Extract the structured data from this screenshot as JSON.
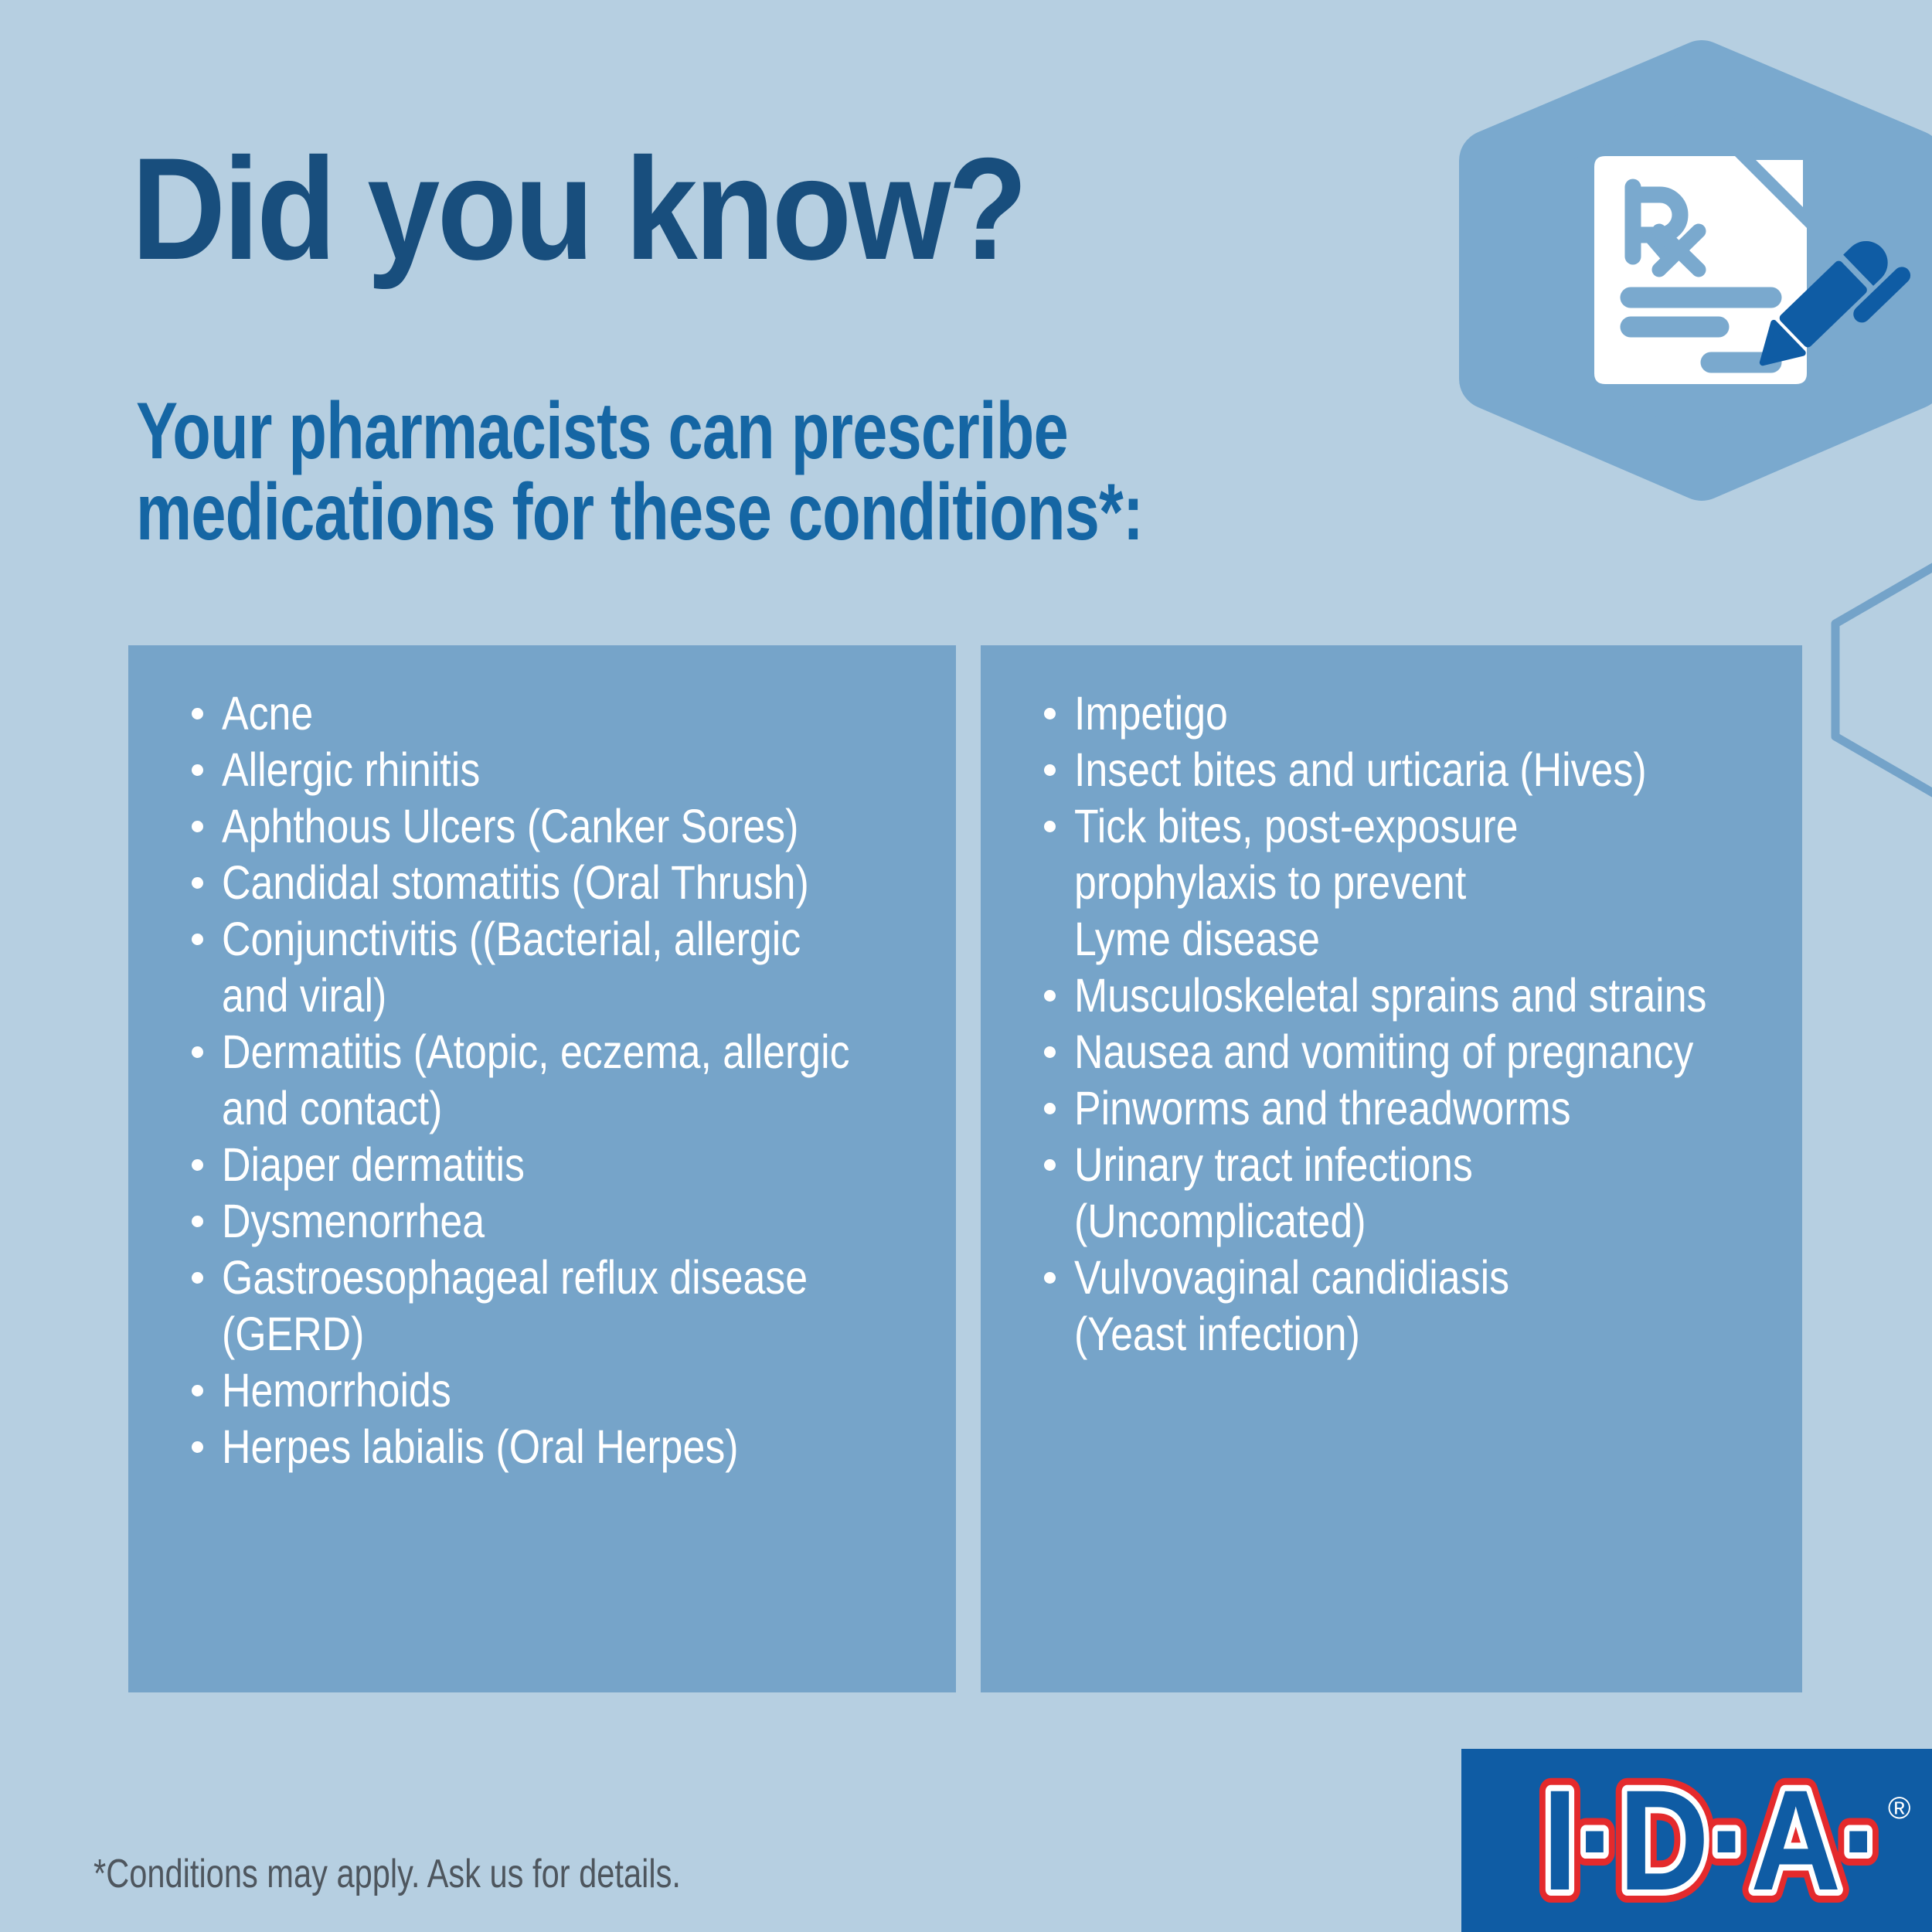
{
  "header": {
    "title": "Did you know?",
    "subtitle_line1": "Your pharmacists can prescribe",
    "subtitle_line2": "medications for these conditions*:"
  },
  "left_panel": {
    "lines": [
      {
        "bullet": true,
        "text": "Acne"
      },
      {
        "bullet": true,
        "text": "Allergic rhinitis"
      },
      {
        "bullet": true,
        "text": "Aphthous Ulcers (Canker Sores)"
      },
      {
        "bullet": true,
        "text": "Candidal stomatitis (Oral Thrush)"
      },
      {
        "bullet": true,
        "text": "Conjunctivitis ((Bacterial, allergic"
      },
      {
        "bullet": false,
        "text": "and viral)"
      },
      {
        "bullet": true,
        "text": "Dermatitis (Atopic, eczema, allergic"
      },
      {
        "bullet": false,
        "text": "and contact)"
      },
      {
        "bullet": true,
        "text": "Diaper dermatitis"
      },
      {
        "bullet": true,
        "text": "Dysmenorrhea"
      },
      {
        "bullet": true,
        "text": "Gastroesophageal reflux disease"
      },
      {
        "bullet": false,
        "text": "(GERD)"
      },
      {
        "bullet": true,
        "text": "Hemorrhoids"
      },
      {
        "bullet": true,
        "text": "Herpes labialis (Oral Herpes)"
      }
    ]
  },
  "right_panel": {
    "lines": [
      {
        "bullet": true,
        "text": "Impetigo"
      },
      {
        "bullet": true,
        "text": "Insect bites and urticaria (Hives)"
      },
      {
        "bullet": true,
        "text": "Tick bites, post-exposure"
      },
      {
        "bullet": false,
        "text": "prophylaxis to prevent"
      },
      {
        "bullet": false,
        "text": "Lyme disease"
      },
      {
        "bullet": true,
        "text": "Musculoskeletal sprains and strains"
      },
      {
        "bullet": true,
        "text": "Nausea and vomiting of pregnancy"
      },
      {
        "bullet": true,
        "text": "Pinworms and threadworms"
      },
      {
        "bullet": true,
        "text": "Urinary tract infections"
      },
      {
        "bullet": false,
        "text": "(Uncomplicated)"
      },
      {
        "bullet": true,
        "text": "Vulvovaginal candidiasis"
      },
      {
        "bullet": false,
        "text": "(Yeast infection)"
      }
    ]
  },
  "footer": {
    "note": "*Conditions may apply. Ask us for details."
  },
  "logo": {
    "text": "I·D·A·",
    "registered_mark": "®"
  },
  "icons": {
    "hero": "prescription-document-with-pen-in-hexagon",
    "hero_symbol": "Rx"
  },
  "colors": {
    "background": "#b6cfe1",
    "panel_blue": "#76a4c9",
    "hexagon_blue": "#7aa9ce",
    "title_navy": "#184e7d",
    "subtitle_blue": "#1566a4",
    "brand_blue": "#0f5ca4",
    "brand_red": "#e42a2c",
    "footnote_gray": "#4e565e",
    "list_text": "#ffffff"
  }
}
